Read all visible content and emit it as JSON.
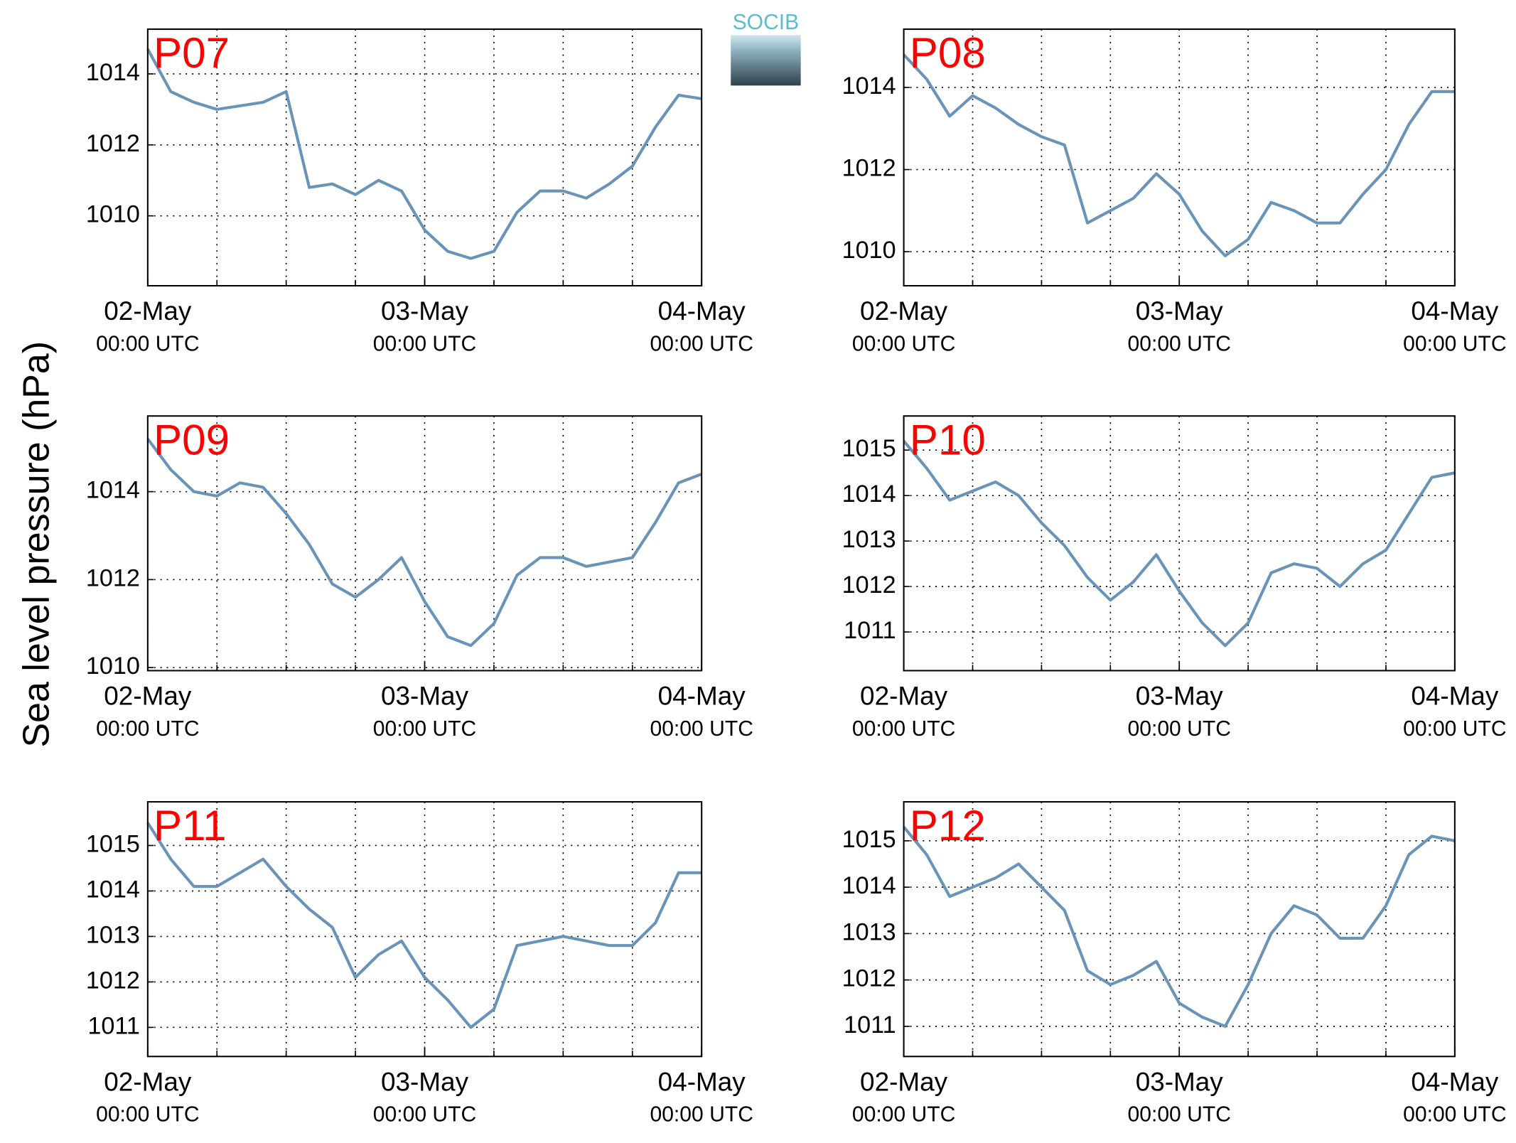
{
  "ylabel": "Sea level pressure (hPa)",
  "logo": "SOCIB",
  "chart_data": [
    {
      "type": "line",
      "title": "P07",
      "color": "#6a93b8",
      "grid": true,
      "x": [
        0,
        2,
        4,
        6,
        8,
        10,
        12,
        14,
        16,
        18,
        20,
        22,
        24,
        26,
        28,
        30,
        32,
        34,
        36,
        38,
        40,
        42,
        44,
        46,
        48
      ],
      "values": [
        1014.7,
        1013.5,
        1013.2,
        1013.0,
        1013.1,
        1013.2,
        1013.5,
        1010.8,
        1010.9,
        1010.6,
        1011.0,
        1010.7,
        1009.6,
        1009.0,
        1008.8,
        1009.0,
        1010.1,
        1010.7,
        1010.7,
        1010.5,
        1010.9,
        1011.4,
        1012.5,
        1013.4,
        1013.3
      ],
      "xlim": [
        0,
        48
      ],
      "xgrid": [
        0,
        6,
        12,
        18,
        24,
        30,
        36,
        42,
        48
      ],
      "xticks": [
        {
          "value": 0,
          "label": "02-May",
          "sublabel": "00:00 UTC"
        },
        {
          "value": 24,
          "label": "03-May",
          "sublabel": "00:00 UTC"
        },
        {
          "value": 48,
          "label": "04-May",
          "sublabel": "00:00 UTC"
        }
      ],
      "ylim": [
        1008.03,
        1015.26
      ],
      "yticks": [
        1010,
        1012,
        1014
      ]
    },
    {
      "type": "line",
      "title": "P08",
      "color": "#6a93b8",
      "grid": true,
      "x": [
        0,
        2,
        4,
        6,
        8,
        10,
        12,
        14,
        16,
        18,
        20,
        22,
        24,
        26,
        28,
        30,
        32,
        34,
        36,
        38,
        40,
        42,
        44,
        46,
        48
      ],
      "values": [
        1014.8,
        1014.2,
        1013.3,
        1013.8,
        1013.5,
        1013.1,
        1012.8,
        1012.6,
        1010.7,
        1011.0,
        1011.3,
        1011.9,
        1011.4,
        1010.5,
        1009.9,
        1010.3,
        1011.2,
        1011.0,
        1010.7,
        1010.7,
        1011.4,
        1012.0,
        1013.1,
        1013.9,
        1013.9
      ],
      "xlim": [
        0,
        48
      ],
      "xgrid": [
        0,
        6,
        12,
        18,
        24,
        30,
        36,
        42,
        48
      ],
      "xticks": [
        {
          "value": 0,
          "label": "02-May",
          "sublabel": "00:00 UTC"
        },
        {
          "value": 24,
          "label": "03-May",
          "sublabel": "00:00 UTC"
        },
        {
          "value": 48,
          "label": "04-May",
          "sublabel": "00:00 UTC"
        }
      ],
      "ylim": [
        1009.17,
        1015.42
      ],
      "yticks": [
        1010,
        1012,
        1014
      ]
    },
    {
      "type": "line",
      "title": "P09",
      "color": "#6a93b8",
      "grid": true,
      "x": [
        0,
        2,
        4,
        6,
        8,
        10,
        12,
        14,
        16,
        18,
        20,
        22,
        24,
        26,
        28,
        30,
        32,
        34,
        36,
        38,
        40,
        42,
        44,
        46,
        48
      ],
      "values": [
        1015.2,
        1014.5,
        1014.0,
        1013.9,
        1014.2,
        1014.1,
        1013.5,
        1012.8,
        1011.9,
        1011.6,
        1012.0,
        1012.5,
        1011.5,
        1010.7,
        1010.5,
        1011.0,
        1012.1,
        1012.5,
        1012.5,
        1012.3,
        1012.4,
        1012.5,
        1013.3,
        1014.2,
        1014.4
      ],
      "xlim": [
        0,
        48
      ],
      "xgrid": [
        0,
        6,
        12,
        18,
        24,
        30,
        36,
        42,
        48
      ],
      "xticks": [
        {
          "value": 0,
          "label": "02-May",
          "sublabel": "00:00 UTC"
        },
        {
          "value": 24,
          "label": "03-May",
          "sublabel": "00:00 UTC"
        },
        {
          "value": 48,
          "label": "04-May",
          "sublabel": "00:00 UTC"
        }
      ],
      "ylim": [
        1009.93,
        1015.72
      ],
      "yticks": [
        1010,
        1012,
        1014
      ]
    },
    {
      "type": "line",
      "title": "P10",
      "color": "#6a93b8",
      "grid": true,
      "x": [
        0,
        2,
        4,
        6,
        8,
        10,
        12,
        14,
        16,
        18,
        20,
        22,
        24,
        26,
        28,
        30,
        32,
        34,
        36,
        38,
        40,
        42,
        44,
        46,
        48
      ],
      "values": [
        1015.2,
        1014.6,
        1013.9,
        1014.1,
        1014.3,
        1014.0,
        1013.4,
        1012.9,
        1012.2,
        1011.7,
        1012.1,
        1012.7,
        1011.9,
        1011.2,
        1010.7,
        1011.2,
        1012.3,
        1012.5,
        1012.4,
        1012.0,
        1012.5,
        1012.8,
        1013.6,
        1014.4,
        1014.5
      ],
      "xlim": [
        0,
        48
      ],
      "xgrid": [
        0,
        6,
        12,
        18,
        24,
        30,
        36,
        42,
        48
      ],
      "xticks": [
        {
          "value": 0,
          "label": "02-May",
          "sublabel": "00:00 UTC"
        },
        {
          "value": 24,
          "label": "03-May",
          "sublabel": "00:00 UTC"
        },
        {
          "value": 48,
          "label": "04-May",
          "sublabel": "00:00 UTC"
        }
      ],
      "ylim": [
        1010.15,
        1015.75
      ],
      "yticks": [
        1011,
        1012,
        1013,
        1014,
        1015
      ]
    },
    {
      "type": "line",
      "title": "P11",
      "color": "#6a93b8",
      "grid": true,
      "x": [
        0,
        2,
        4,
        6,
        8,
        10,
        12,
        14,
        16,
        18,
        20,
        22,
        24,
        26,
        28,
        30,
        32,
        34,
        36,
        38,
        40,
        42,
        44,
        46,
        48
      ],
      "values": [
        1015.5,
        1014.7,
        1014.1,
        1014.1,
        1014.4,
        1014.7,
        1014.1,
        1013.6,
        1013.2,
        1012.1,
        1012.6,
        1012.9,
        1012.1,
        1011.6,
        1011.0,
        1011.4,
        1012.8,
        1012.9,
        1013.0,
        1012.9,
        1012.8,
        1012.8,
        1013.3,
        1014.4,
        1014.4
      ],
      "xlim": [
        0,
        48
      ],
      "xgrid": [
        0,
        6,
        12,
        18,
        24,
        30,
        36,
        42,
        48
      ],
      "xticks": [
        {
          "value": 0,
          "label": "02-May",
          "sublabel": "00:00 UTC"
        },
        {
          "value": 24,
          "label": "03-May",
          "sublabel": "00:00 UTC"
        },
        {
          "value": 48,
          "label": "04-May",
          "sublabel": "00:00 UTC"
        }
      ],
      "ylim": [
        1010.36,
        1015.96
      ],
      "yticks": [
        1011,
        1012,
        1013,
        1014,
        1015
      ]
    },
    {
      "type": "line",
      "title": "P12",
      "color": "#6a93b8",
      "grid": true,
      "x": [
        0,
        2,
        4,
        6,
        8,
        10,
        12,
        14,
        16,
        18,
        20,
        22,
        24,
        26,
        28,
        30,
        32,
        34,
        36,
        38,
        40,
        42,
        44,
        46,
        48
      ],
      "values": [
        1015.3,
        1014.7,
        1013.8,
        1014.0,
        1014.2,
        1014.5,
        1014.0,
        1013.5,
        1012.2,
        1011.9,
        1012.1,
        1012.4,
        1011.5,
        1011.2,
        1011.0,
        1011.9,
        1013.0,
        1013.6,
        1013.4,
        1012.9,
        1012.9,
        1013.6,
        1014.7,
        1015.1,
        1015.0
      ],
      "xlim": [
        0,
        48
      ],
      "xgrid": [
        0,
        6,
        12,
        18,
        24,
        30,
        36,
        42,
        48
      ],
      "xticks": [
        {
          "value": 0,
          "label": "02-May",
          "sublabel": "00:00 UTC"
        },
        {
          "value": 24,
          "label": "03-May",
          "sublabel": "00:00 UTC"
        },
        {
          "value": 48,
          "label": "04-May",
          "sublabel": "00:00 UTC"
        }
      ],
      "ylim": [
        1010.35,
        1015.84
      ],
      "yticks": [
        1011,
        1012,
        1013,
        1014,
        1015
      ]
    }
  ]
}
